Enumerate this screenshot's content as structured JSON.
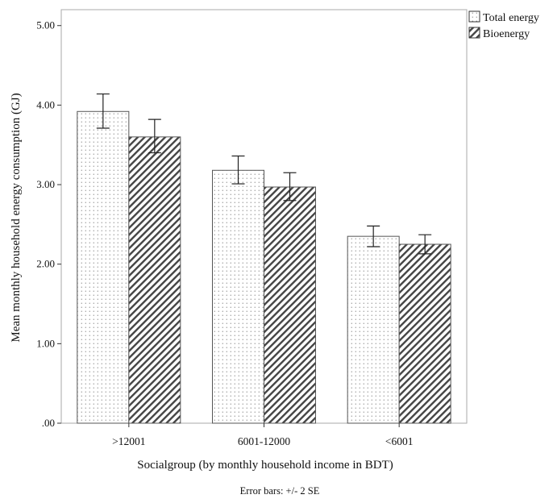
{
  "chart_data": {
    "type": "bar",
    "title": "",
    "xlabel": "Socialgroup (by monthly household income in BDT)",
    "ylabel": "Mean monthly household energy consumption (GJ)",
    "note": "Error bars: +/- 2 SE",
    "ylim": [
      0,
      5.2
    ],
    "yticks": [
      0,
      1,
      2,
      3,
      4,
      5
    ],
    "ytick_labels": [
      ".00",
      "1.00",
      "2.00",
      "3.00",
      "4.00",
      "5.00"
    ],
    "grid": false,
    "legend_position": "top-right",
    "categories": [
      ">12001",
      "6001-12000",
      "<6001"
    ],
    "series": [
      {
        "name": "Total energy",
        "pattern": "dots",
        "values": [
          3.92,
          3.18,
          2.35
        ],
        "error_low": [
          3.71,
          3.01,
          2.22
        ],
        "error_high": [
          4.14,
          3.36,
          2.48
        ]
      },
      {
        "name": "Bioenergy",
        "pattern": "hatch",
        "values": [
          3.6,
          2.97,
          2.25
        ],
        "error_low": [
          3.4,
          2.8,
          2.13
        ],
        "error_high": [
          3.82,
          3.15,
          2.37
        ]
      }
    ],
    "colors": {
      "bar_fill": "#ffffff",
      "bar_stroke": "#555555",
      "hatch": "#444444",
      "frame": "#aaaaaa"
    }
  }
}
